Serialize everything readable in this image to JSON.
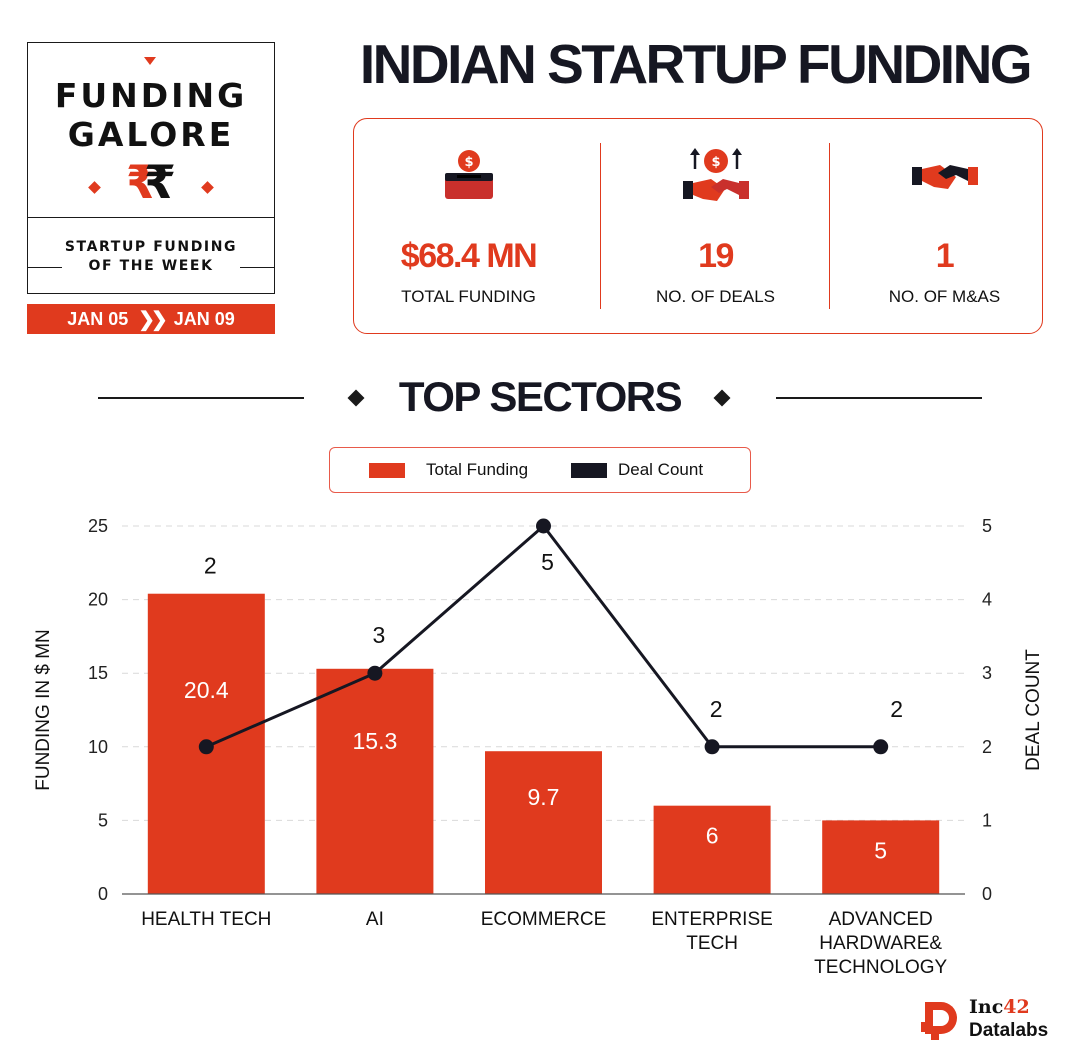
{
  "badge": {
    "line1": "FUNDING",
    "line2": "GALORE",
    "rupee_symbol": "₹",
    "subtitle_line1": "STARTUP FUNDING",
    "subtitle_line2": "OF THE WEEK",
    "date_start": "JAN 05",
    "date_separator": "»",
    "date_end": "JAN 09"
  },
  "title": "INDIAN STARTUP FUNDING",
  "stats": [
    {
      "icon": "money-box-icon",
      "value": "$68.4 MN",
      "label": "TOTAL FUNDING"
    },
    {
      "icon": "handshake-dollar-icon",
      "value": "19",
      "label": "NO. OF DEALS"
    },
    {
      "icon": "handshake-icon",
      "value": "1",
      "label": "NO. OF M&AS"
    }
  ],
  "sectors_heading": "TOP SECTORS",
  "legend": {
    "funding_label": "Total Funding",
    "deals_label": "Deal Count"
  },
  "colors": {
    "accent": "#e03a1e",
    "dark": "#161722",
    "grid": "#d9d9d9"
  },
  "chart_data": {
    "type": "bar",
    "categories": [
      [
        "HEALTH TECH"
      ],
      [
        "AI"
      ],
      [
        "ECOMMERCE"
      ],
      [
        "ENTERPRISE",
        "TECH"
      ],
      [
        "ADVANCED",
        "HARDWARE&",
        "TECHNOLOGY"
      ]
    ],
    "series": [
      {
        "name": "Total Funding",
        "type": "bar",
        "axis": "left",
        "values": [
          20.4,
          15.3,
          9.7,
          6,
          5
        ],
        "labels": [
          "20.4",
          "15.3",
          "9.7",
          "6",
          "5"
        ],
        "color": "#e03a1e"
      },
      {
        "name": "Deal Count",
        "type": "line",
        "axis": "right",
        "values": [
          2,
          3,
          5,
          2,
          2
        ],
        "labels": [
          "2",
          "3",
          "5",
          "2",
          "2"
        ],
        "color": "#161722"
      }
    ],
    "ylabel": "FUNDING IN $ MN",
    "y2label": "DEAL COUNT",
    "ylim": [
      0,
      25
    ],
    "y2lim": [
      0,
      5
    ],
    "yticks": [
      "0",
      "5",
      "10",
      "15",
      "20",
      "25"
    ],
    "y2ticks": [
      "0",
      "1",
      "2",
      "3",
      "4",
      "5"
    ],
    "grid": true
  },
  "logo": {
    "brand_inc": "Inc",
    "brand_42": "42",
    "brand_sub": "Datalabs"
  }
}
